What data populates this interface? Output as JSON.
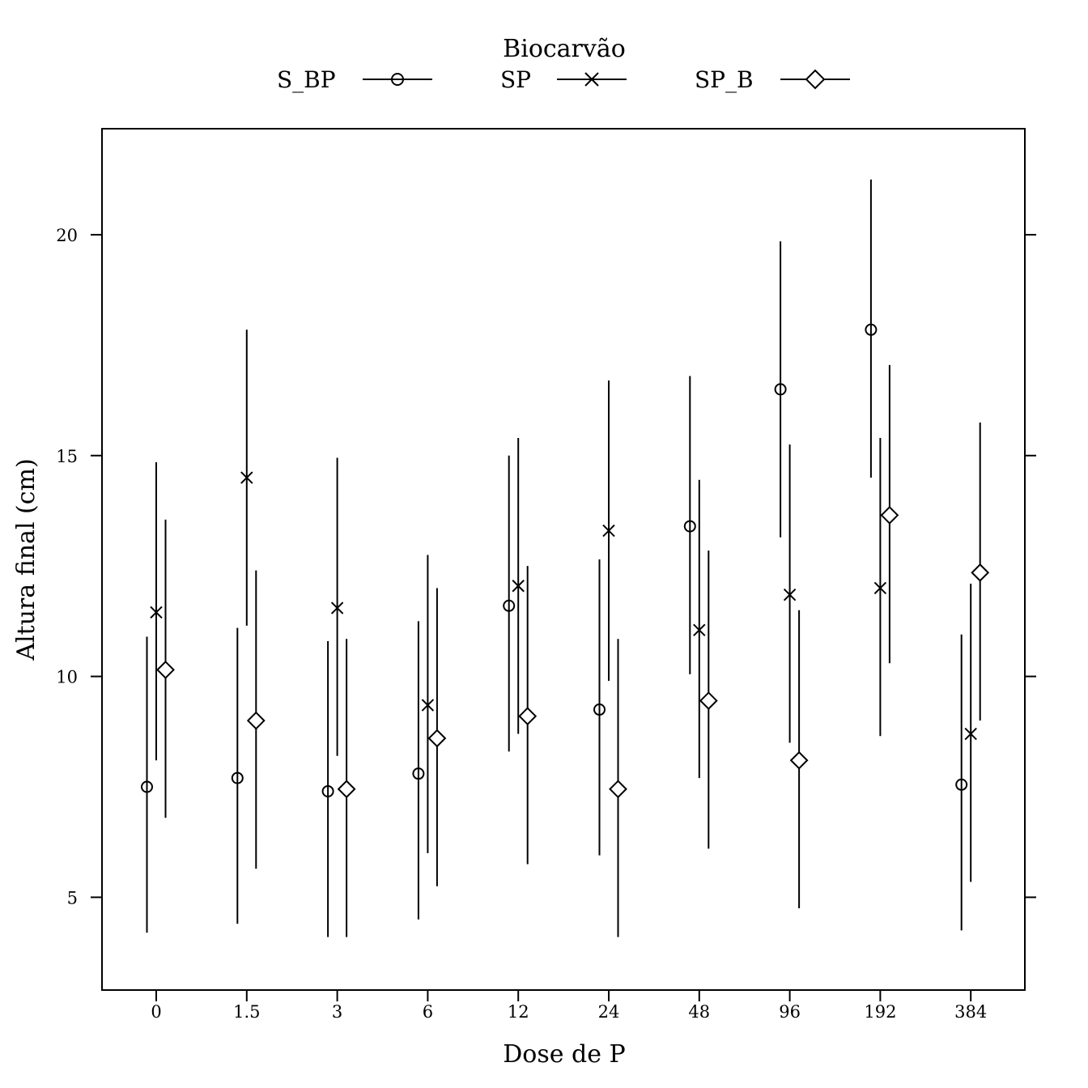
{
  "chart_data": {
    "type": "scatter",
    "variant": "dot-with-error-bars",
    "xlabel": "Dose de P",
    "ylabel": "Altura final (cm)",
    "categories": [
      "0",
      "1.5",
      "3",
      "6",
      "12",
      "24",
      "48",
      "96",
      "192",
      "384"
    ],
    "ylim": [
      2.9,
      22.4
    ],
    "yticks": [
      5,
      10,
      15,
      20
    ],
    "grid": false,
    "legend": {
      "title": "Biocarvão",
      "position": "top-center"
    },
    "series": [
      {
        "name": "S_BP",
        "marker": "circle",
        "values": [
          7.5,
          7.7,
          7.4,
          7.8,
          11.6,
          9.25,
          13.4,
          16.5,
          17.85,
          7.55
        ],
        "lower": [
          4.2,
          4.4,
          4.1,
          4.5,
          8.3,
          5.95,
          10.05,
          13.15,
          14.5,
          4.25
        ],
        "upper": [
          10.9,
          11.1,
          10.8,
          11.25,
          15.0,
          12.65,
          16.8,
          19.85,
          21.25,
          10.95
        ]
      },
      {
        "name": "SP",
        "marker": "x",
        "values": [
          11.45,
          14.5,
          11.55,
          9.35,
          12.05,
          13.3,
          11.05,
          11.85,
          12.0,
          8.7
        ],
        "lower": [
          8.1,
          11.15,
          8.2,
          6.0,
          8.7,
          9.9,
          7.7,
          8.5,
          8.65,
          5.35
        ],
        "upper": [
          14.85,
          17.85,
          14.95,
          12.75,
          15.4,
          16.7,
          14.45,
          15.25,
          15.4,
          12.1
        ]
      },
      {
        "name": "SP_B",
        "marker": "diamond",
        "values": [
          10.15,
          9.0,
          7.45,
          8.6,
          9.1,
          7.45,
          9.45,
          8.1,
          13.65,
          12.35
        ],
        "lower": [
          6.8,
          5.65,
          4.1,
          5.25,
          5.75,
          4.1,
          6.1,
          4.75,
          10.3,
          9.0
        ],
        "upper": [
          13.55,
          12.4,
          10.85,
          12.0,
          12.5,
          10.85,
          12.85,
          11.5,
          17.05,
          15.75
        ]
      }
    ]
  }
}
